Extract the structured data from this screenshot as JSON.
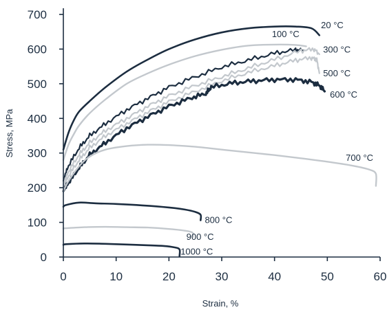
{
  "chart_data": {
    "type": "line",
    "title": "",
    "xlabel": "Strain, %",
    "ylabel": "Stress, MPa",
    "xlim": [
      0,
      60
    ],
    "ylim": [
      0,
      700
    ],
    "xticks": [
      "0",
      "10",
      "20",
      "30",
      "40",
      "50",
      "60"
    ],
    "yticks": [
      "0",
      "100",
      "200",
      "300",
      "400",
      "500",
      "600",
      "700"
    ],
    "grid": false,
    "legend": "inline labels at curve ends",
    "colors": {
      "dark": "#1c2d40",
      "light": "#c3c8cd"
    },
    "series": [
      {
        "name": "20 °C",
        "color": "dark",
        "weight": 2.6,
        "x": [
          0,
          1,
          2,
          3,
          5,
          8,
          12,
          16,
          20,
          25,
          30,
          35,
          40,
          44,
          47,
          48.5
        ],
        "y": [
          310,
          360,
          395,
          420,
          450,
          490,
          535,
          570,
          600,
          628,
          648,
          660,
          665,
          665,
          660,
          640
        ]
      },
      {
        "name": "100 °C",
        "color": "light",
        "weight": 2.4,
        "x": [
          0,
          1,
          2,
          3,
          5,
          8,
          12,
          16,
          20,
          25,
          30,
          35,
          40,
          44,
          46
        ],
        "y": [
          280,
          325,
          355,
          380,
          415,
          455,
          500,
          530,
          555,
          580,
          598,
          610,
          613,
          612,
          608
        ]
      },
      {
        "name": "300 °C",
        "color": "dark",
        "weight": 2.2,
        "noisy": true,
        "x": [
          0,
          1,
          3,
          5,
          8,
          12,
          16,
          20,
          25,
          30,
          35,
          40,
          44,
          45.5
        ],
        "y": [
          220,
          265,
          315,
          350,
          385,
          425,
          458,
          490,
          520,
          548,
          568,
          588,
          598,
          596
        ]
      },
      {
        "name": "300 °C",
        "color": "light",
        "weight": 2.2,
        "noisy": true,
        "x": [
          0,
          1,
          3,
          5,
          8,
          12,
          16,
          20,
          25,
          30,
          35,
          40,
          45,
          47.5,
          48.5
        ],
        "y": [
          210,
          248,
          296,
          330,
          365,
          400,
          435,
          465,
          495,
          520,
          545,
          570,
          595,
          600,
          585
        ]
      },
      {
        "name": "500 °C",
        "color": "light",
        "weight": 2.2,
        "noisy": true,
        "x": [
          0,
          1,
          3,
          5,
          8,
          12,
          16,
          20,
          25,
          30,
          35,
          40,
          44,
          47,
          48,
          48.5
        ],
        "y": [
          200,
          235,
          280,
          315,
          350,
          385,
          418,
          448,
          478,
          508,
          532,
          552,
          568,
          575,
          570,
          530
        ]
      },
      {
        "name": "600 °C",
        "color": "dark",
        "weight": 3.2,
        "noisy": true,
        "x": [
          0,
          1,
          3,
          5,
          8,
          12,
          16,
          20,
          24,
          27,
          28,
          32,
          36,
          40,
          44,
          47,
          48.5,
          49.5
        ],
        "y": [
          190,
          215,
          258,
          295,
          330,
          372,
          405,
          435,
          458,
          472,
          490,
          502,
          508,
          512,
          512,
          505,
          495,
          478
        ]
      },
      {
        "name": "700 °C",
        "color": "light",
        "weight": 2.4,
        "x": [
          0,
          1,
          3,
          5,
          8,
          12,
          16,
          20,
          25,
          30,
          35,
          40,
          45,
          50,
          55,
          58,
          59.2,
          59.2
        ],
        "y": [
          190,
          220,
          262,
          290,
          310,
          320,
          324,
          323,
          318,
          310,
          302,
          294,
          285,
          275,
          263,
          252,
          240,
          205
        ]
      },
      {
        "name": "800 °C",
        "color": "dark",
        "weight": 2.6,
        "x": [
          0,
          0.5,
          3,
          6,
          10,
          15,
          20,
          23,
          25,
          26,
          26
        ],
        "y": [
          145,
          150,
          157,
          155,
          153,
          149,
          143,
          137,
          130,
          122,
          106
        ]
      },
      {
        "name": "900 °C",
        "color": "light",
        "weight": 2.4,
        "x": [
          0,
          0.5,
          4,
          8,
          12,
          16,
          20,
          23,
          24.5,
          24.5
        ],
        "y": [
          82,
          83,
          86,
          87,
          86,
          85,
          81,
          76,
          70,
          57
        ]
      },
      {
        "name": "1000 °C",
        "color": "dark",
        "weight": 2.6,
        "x": [
          0,
          0.5,
          4,
          8,
          12,
          16,
          19,
          21,
          22,
          22
        ],
        "y": [
          35,
          37,
          39,
          38,
          36,
          34,
          32,
          28,
          22,
          3
        ]
      }
    ],
    "annotations": [
      {
        "text": "20 °C",
        "x": 48.8,
        "y": 660
      },
      {
        "text": "100 °C",
        "x": 39.5,
        "y": 635
      },
      {
        "text": "300 °C",
        "x": 49.2,
        "y": 590
      },
      {
        "text": "500 °C",
        "x": 49.2,
        "y": 522
      },
      {
        "text": "600 °C",
        "x": 50.5,
        "y": 460
      },
      {
        "text": "700 °C",
        "x": 53.5,
        "y": 278
      },
      {
        "text": "800 °C",
        "x": 26.8,
        "y": 98
      },
      {
        "text": "900 °C",
        "x": 23.3,
        "y": 50
      },
      {
        "text": "1000 °C",
        "x": 22.2,
        "y": 7
      }
    ]
  }
}
